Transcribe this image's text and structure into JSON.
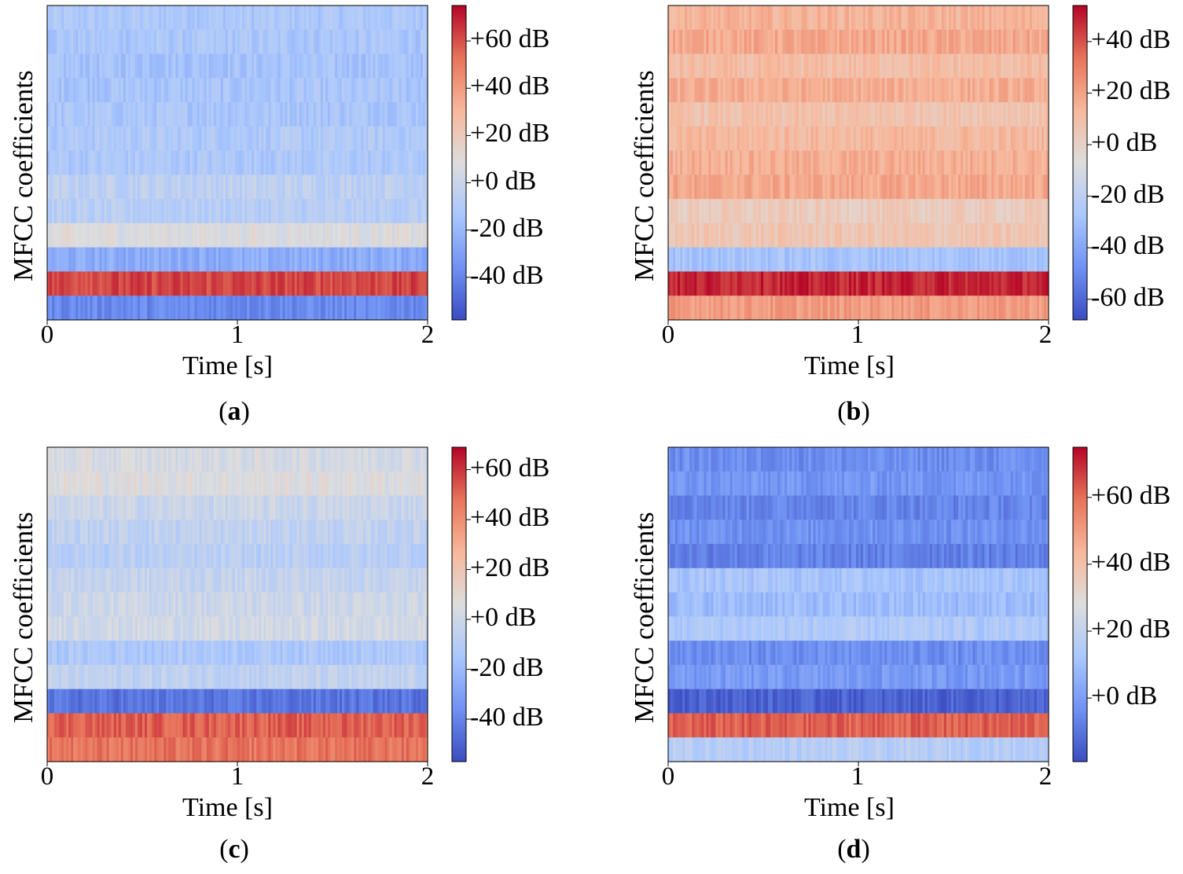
{
  "colors": {
    "cmap": [
      "#3b4cc0",
      "#6f92f3",
      "#aac7fd",
      "#dddddd",
      "#f7b89c",
      "#e7745b",
      "#b40426"
    ]
  },
  "chart_data": [
    {
      "type": "heatmap",
      "panel": "a",
      "caption_letter": "a",
      "xlabel": "Time [s]",
      "ylabel": "MFCC coefficients",
      "xlim": [
        0,
        2
      ],
      "x_ticks": [
        "0",
        "1",
        "2"
      ],
      "n_coefficients": 13,
      "colorbar": {
        "vmin": -58,
        "vmax": 75,
        "ticks": [
          {
            "value": 60,
            "label": "+60 dB"
          },
          {
            "value": 40,
            "label": "+40 dB"
          },
          {
            "value": 20,
            "label": "+20 dB"
          },
          {
            "value": 0,
            "label": "+0 dB"
          },
          {
            "value": -20,
            "label": "-20 dB"
          },
          {
            "value": -40,
            "label": "-40 dB"
          }
        ]
      },
      "row_levels_db_top_to_bottom": [
        -12,
        -13,
        -15,
        -14,
        -13,
        -11,
        -12,
        -5,
        -8,
        8,
        -25,
        62,
        -38
      ]
    },
    {
      "type": "heatmap",
      "panel": "b",
      "caption_letter": "b",
      "xlabel": "Time [s]",
      "ylabel": "MFCC coefficients",
      "xlim": [
        0,
        2
      ],
      "x_ticks": [
        "0",
        "1",
        "2"
      ],
      "n_coefficients": 13,
      "colorbar": {
        "vmin": -68,
        "vmax": 54,
        "ticks": [
          {
            "value": 40,
            "label": "+40 dB"
          },
          {
            "value": 20,
            "label": "+20 dB"
          },
          {
            "value": 0,
            "label": "+0 dB"
          },
          {
            "value": -20,
            "label": "-20 dB"
          },
          {
            "value": -40,
            "label": "-40 dB"
          },
          {
            "value": -60,
            "label": "-60 dB"
          }
        ]
      },
      "row_levels_db_top_to_bottom": [
        14,
        18,
        10,
        16,
        8,
        12,
        16,
        18,
        3,
        6,
        -28,
        48,
        22
      ]
    },
    {
      "type": "heatmap",
      "panel": "c",
      "caption_letter": "c",
      "xlabel": "Time [s]",
      "ylabel": "MFCC coefficients",
      "xlim": [
        0,
        2
      ],
      "x_ticks": [
        "0",
        "1",
        "2"
      ],
      "n_coefficients": 13,
      "colorbar": {
        "vmin": -57,
        "vmax": 69,
        "ticks": [
          {
            "value": 60,
            "label": "+60 dB"
          },
          {
            "value": 40,
            "label": "+40 dB"
          },
          {
            "value": 20,
            "label": "+20 dB"
          },
          {
            "value": 0,
            "label": "+0 dB"
          },
          {
            "value": -20,
            "label": "-20 dB"
          },
          {
            "value": -40,
            "label": "-40 dB"
          }
        ]
      },
      "row_levels_db_top_to_bottom": [
        3,
        6,
        -2,
        -6,
        -9,
        -4,
        -1,
        1,
        -13,
        -6,
        -45,
        52,
        47
      ]
    },
    {
      "type": "heatmap",
      "panel": "d",
      "caption_letter": "d",
      "xlabel": "Time [s]",
      "ylabel": "MFCC coefficients",
      "xlim": [
        0,
        2
      ],
      "x_ticks": [
        "0",
        "1",
        "2"
      ],
      "n_coefficients": 13,
      "colorbar": {
        "vmin": -19,
        "vmax": 75,
        "ticks": [
          {
            "value": 60,
            "label": "+60 dB"
          },
          {
            "value": 40,
            "label": "+40 dB"
          },
          {
            "value": 20,
            "label": "+20 dB"
          },
          {
            "value": 0,
            "label": "+0 dB"
          }
        ]
      },
      "row_levels_db_top_to_bottom": [
        -4,
        -2,
        -6,
        -3,
        -7,
        12,
        9,
        14,
        -4,
        -1,
        -14,
        62,
        16
      ]
    }
  ]
}
